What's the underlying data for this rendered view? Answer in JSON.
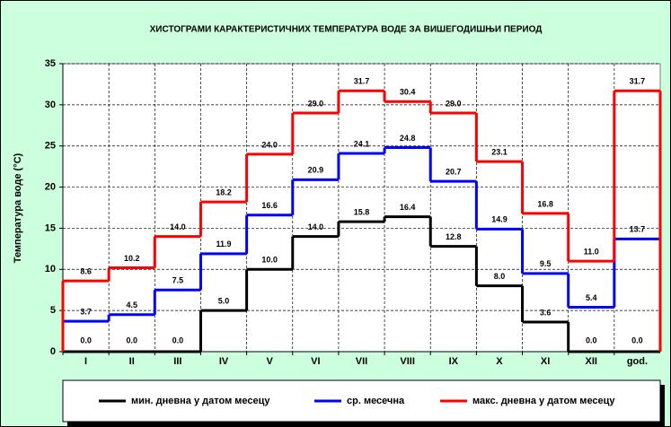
{
  "chart_data": {
    "type": "step",
    "title": "ХИСТОГРАМИ КАРАКТЕРИСТИЧНИХ ТЕМПЕРАТУРА ВОДЕ ЗА ВИШЕГОДИШЊИ ПЕРИОД",
    "y_label": "Температура воде (°C)",
    "categories": [
      "I",
      "II",
      "III",
      "IV",
      "V",
      "VI",
      "VII",
      "VIII",
      "IX",
      "X",
      "XI",
      "XII",
      "god."
    ],
    "series": [
      {
        "name": "мин. дневна у датом месецу",
        "color": "#000000",
        "values": [
          0,
          0,
          0,
          5,
          10,
          14,
          15.8,
          16.4,
          12.8,
          8,
          3.6,
          0,
          0
        ],
        "value_labels": [
          "0.0",
          "0.0",
          "0.0",
          "5.0",
          "10.0",
          "14.0",
          "15.8",
          "16.4",
          "12.8",
          "8.0",
          "3.6",
          "0.0",
          "0.0"
        ]
      },
      {
        "name": "ср. месечна",
        "color": "#0000ff",
        "values": [
          3.7,
          4.5,
          7.5,
          11.9,
          16.6,
          20.9,
          24.1,
          24.8,
          20.7,
          14.9,
          9.5,
          5.4,
          13.7
        ],
        "value_labels": [
          "3.7",
          "4.5",
          "7.5",
          "11.9",
          "16.6",
          "20.9",
          "24.1",
          "24.8",
          "20.7",
          "14.9",
          "9.5",
          "5.4",
          "13.7"
        ]
      },
      {
        "name": "макс. дневна у датом месецу",
        "color": "#ff0000",
        "values": [
          8.6,
          10.2,
          14,
          18.2,
          24,
          29,
          31.7,
          30.4,
          29,
          23.1,
          16.8,
          11,
          31.7
        ],
        "value_labels": [
          "8.6",
          "10.2",
          "14.0",
          "18.2",
          "24.0",
          "29.0",
          "31.7",
          "30.4",
          "29.0",
          "23.1",
          "16.8",
          "11.0",
          "31.7"
        ]
      }
    ],
    "ylim": [
      0,
      35
    ],
    "yticks": [
      0,
      5,
      10,
      15,
      20,
      25,
      30,
      35
    ],
    "grid": true
  }
}
